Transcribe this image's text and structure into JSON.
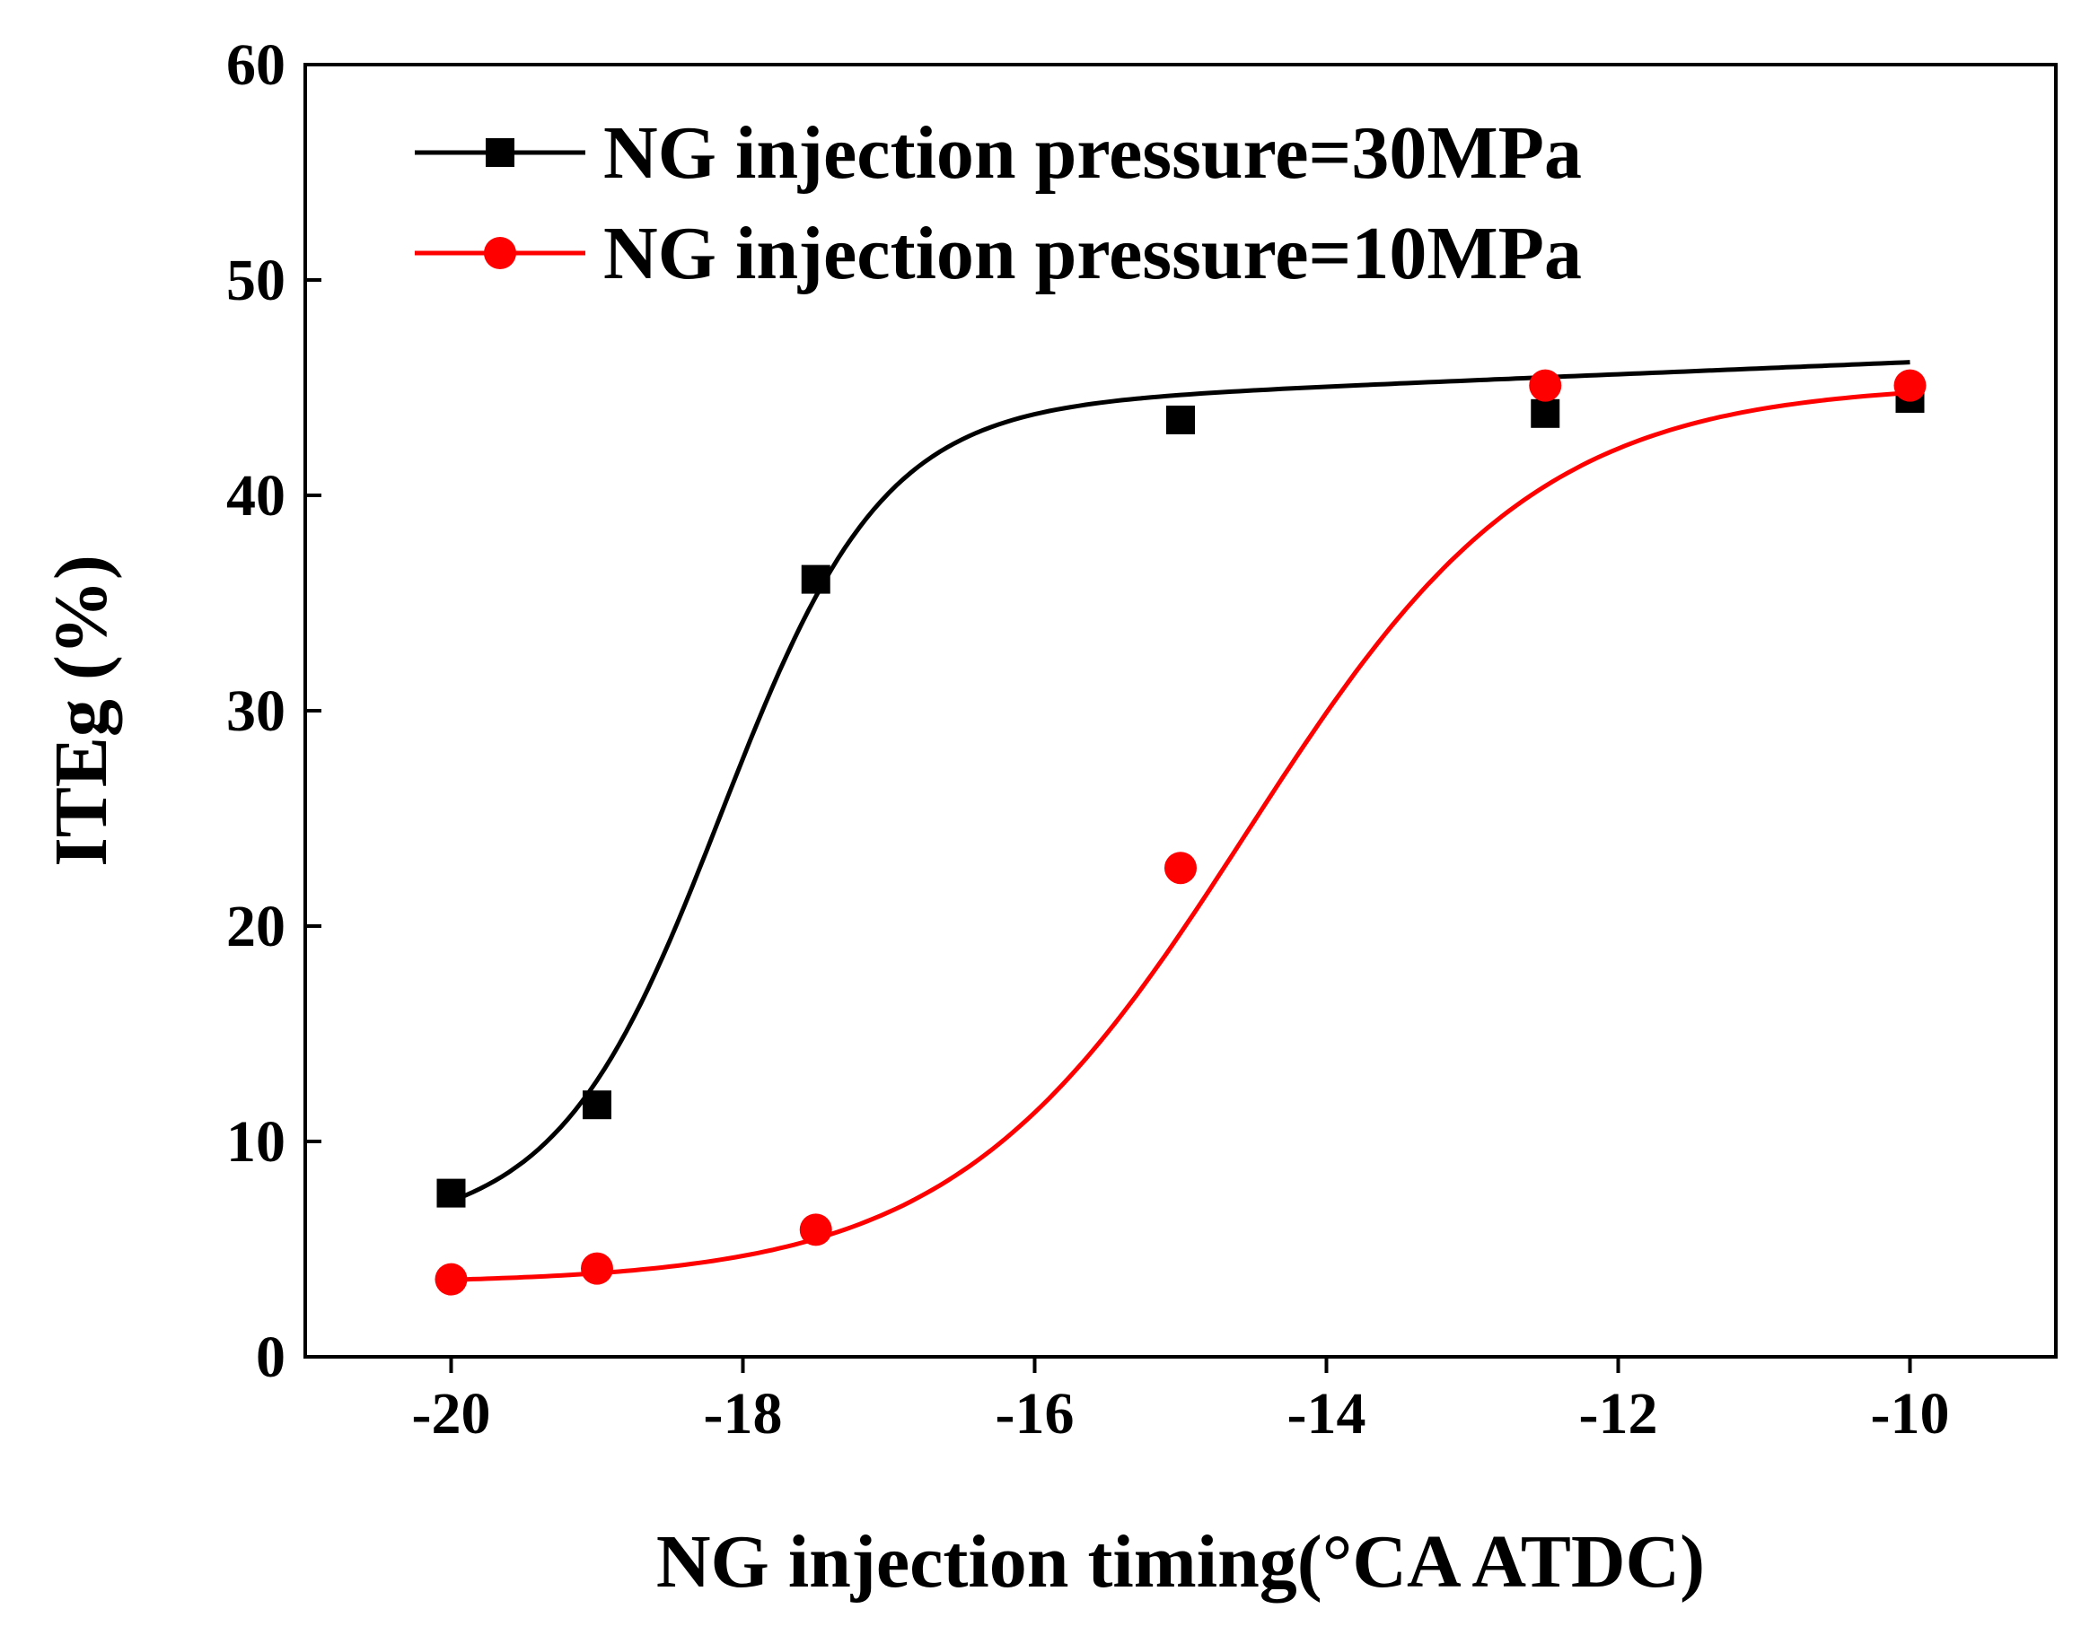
{
  "chart_data": {
    "type": "line",
    "title": "",
    "xlabel": "NG injection timing(°CA  ATDC)",
    "ylabel": "ITEg (%)",
    "xlim": [
      -21,
      -9
    ],
    "ylim": [
      0,
      60
    ],
    "xticks": [
      -20,
      -18,
      -16,
      -14,
      -12,
      -10
    ],
    "xtick_labels": [
      "-20",
      "-18",
      "-16",
      "-14",
      "-12",
      "-10"
    ],
    "yticks": [
      0,
      10,
      20,
      30,
      40,
      50,
      60
    ],
    "ytick_labels": [
      "0",
      "10",
      "20",
      "30",
      "40",
      "50",
      "60"
    ],
    "grid": false,
    "legend_position": "top-left",
    "series": [
      {
        "name": "NG injection pressure=30MPa",
        "color": "#000000",
        "marker": "square",
        "x": [
          -20,
          -19,
          -17.5,
          -15,
          -12.5,
          -10
        ],
        "values": [
          7.6,
          11.7,
          36.1,
          43.5,
          43.8,
          44.5
        ],
        "fit": {
          "curve": "logistic",
          "lower": 6.5,
          "upper": 43.9,
          "center": -18.15,
          "scale": 0.55,
          "slope": 0.28
        }
      },
      {
        "name": "NG injection pressure=10MPa",
        "color": "#ff0000",
        "marker": "circle",
        "x": [
          -20,
          -19,
          -17.5,
          -15,
          -12.5,
          -10
        ],
        "values": [
          3.6,
          4.1,
          5.9,
          22.7,
          45.1,
          45.1
        ],
        "fit": {
          "curve": "logistic",
          "lower": 3.4,
          "upper": 45.2,
          "center": -14.55,
          "scale": 1.0,
          "slope": 0
        }
      }
    ]
  }
}
